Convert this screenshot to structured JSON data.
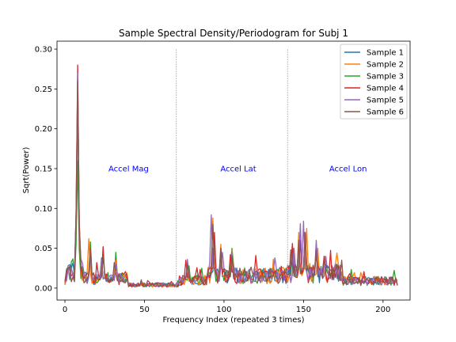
{
  "chart_data": {
    "type": "line",
    "title": "Sample Spectral Density/Periodogram for Subj 1",
    "xlabel": "Frequency Index (repeated 3 times)",
    "ylabel": "Sqrt(Power)",
    "xlim": [
      -5,
      217
    ],
    "ylim": [
      -0.015,
      0.31
    ],
    "xticks": [
      0,
      50,
      100,
      150,
      200
    ],
    "yticks": [
      0.0,
      0.05,
      0.1,
      0.15,
      0.2,
      0.25,
      0.3
    ],
    "ytick_labels": [
      "0.00",
      "0.05",
      "0.10",
      "0.15",
      "0.20",
      "0.25",
      "0.30"
    ],
    "legend_position": "top-right",
    "grid": false,
    "divider_lines": [
      {
        "x": 70,
        "ytop": 0.3
      },
      {
        "x": 140,
        "ytop": 0.3
      }
    ],
    "region_labels": [
      {
        "text": "Accel Mag",
        "x": 40,
        "y": 0.15
      },
      {
        "text": "Accel Lat",
        "x": 109,
        "y": 0.15
      },
      {
        "text": "Accel Lon",
        "x": 178,
        "y": 0.15
      }
    ],
    "region_label_color": "#0000ff",
    "peaks": [
      {
        "x": 8,
        "values": [
          0.23,
          0.24,
          0.16,
          0.28,
          0.27,
          0.26
        ]
      },
      {
        "x": 16,
        "values": [
          0.05,
          0.062,
          0.058,
          0.045,
          0.04,
          0.05
        ]
      },
      {
        "x": 24,
        "values": [
          0.04,
          0.045,
          0.038,
          0.052,
          0.035,
          0.04
        ]
      },
      {
        "x": 32,
        "values": [
          0.03,
          0.035,
          0.045,
          0.028,
          0.03,
          0.032
        ]
      },
      {
        "x": 77,
        "values": [
          0.03,
          0.032,
          0.028,
          0.035,
          0.036,
          0.03
        ]
      },
      {
        "x": 93,
        "values": [
          0.06,
          0.088,
          0.05,
          0.07,
          0.092,
          0.08
        ]
      },
      {
        "x": 98,
        "values": [
          0.045,
          0.055,
          0.04,
          0.05,
          0.045,
          0.05
        ]
      },
      {
        "x": 105,
        "values": [
          0.04,
          0.048,
          0.05,
          0.042,
          0.045,
          0.04
        ]
      },
      {
        "x": 143,
        "values": [
          0.05,
          0.05,
          0.045,
          0.056,
          0.05,
          0.048
        ]
      },
      {
        "x": 147,
        "values": [
          0.06,
          0.07,
          0.05,
          0.06,
          0.081,
          0.06
        ]
      },
      {
        "x": 151,
        "values": [
          0.07,
          0.075,
          0.06,
          0.07,
          0.084,
          0.07
        ]
      },
      {
        "x": 158,
        "values": [
          0.045,
          0.05,
          0.04,
          0.05,
          0.06,
          0.048
        ]
      },
      {
        "x": 163,
        "values": [
          0.04,
          0.04,
          0.038,
          0.04,
          0.04,
          0.035
        ]
      },
      {
        "x": 171,
        "values": [
          0.03,
          0.044,
          0.03,
          0.028,
          0.03,
          0.03
        ]
      }
    ],
    "series": [
      {
        "name": "Sample 1",
        "color": "#1f77b4"
      },
      {
        "name": "Sample 2",
        "color": "#ff7f0e"
      },
      {
        "name": "Sample 3",
        "color": "#2ca02c"
      },
      {
        "name": "Sample 4",
        "color": "#d62728"
      },
      {
        "name": "Sample 5",
        "color": "#9467bd"
      },
      {
        "name": "Sample 6",
        "color": "#8c564b"
      }
    ]
  }
}
